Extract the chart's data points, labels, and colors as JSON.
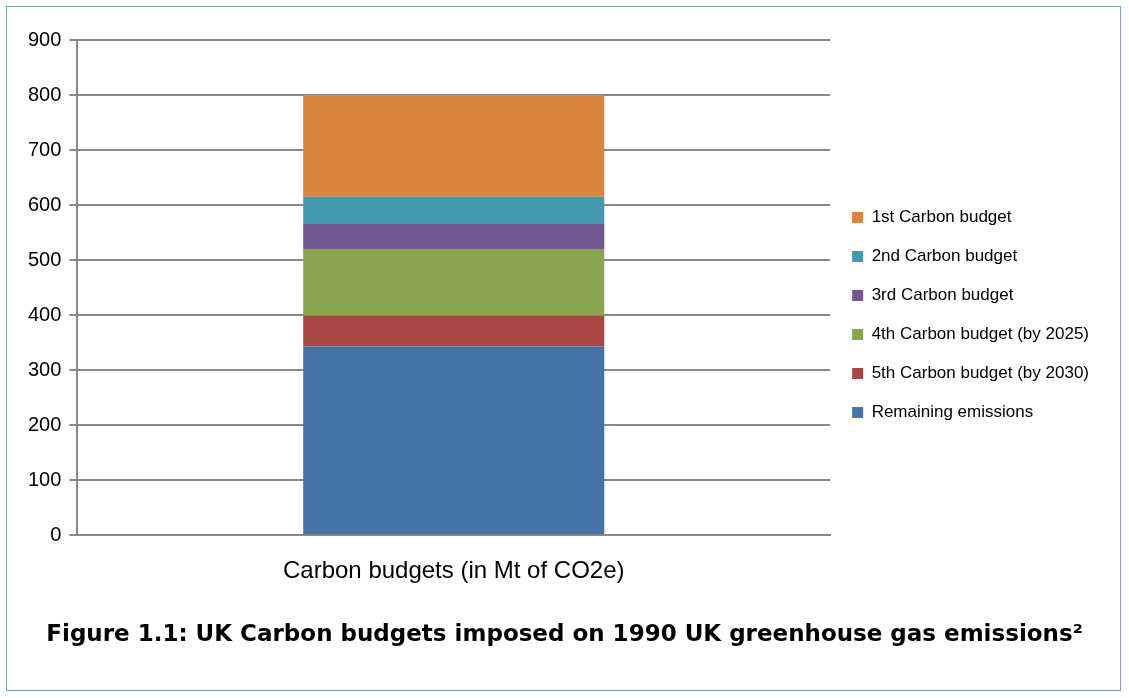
{
  "chart_data": {
    "type": "bar",
    "stacked": true,
    "categories": [
      "Carbon budgets (in Mt of CO2e)"
    ],
    "series": [
      {
        "name": "Remaining emissions",
        "color": "#4572a7",
        "values": [
          343
        ]
      },
      {
        "name": "5th Carbon budget (by 2030)",
        "color": "#aa4643",
        "values": [
          56
        ]
      },
      {
        "name": "4th Carbon budget (by 2025)",
        "color": "#89a54e",
        "values": [
          121
        ]
      },
      {
        "name": "3rd Carbon budget",
        "color": "#71588f",
        "values": [
          47
        ]
      },
      {
        "name": "2nd Carbon budget",
        "color": "#4198af",
        "values": [
          48
        ]
      },
      {
        "name": "1st Carbon budget",
        "color": "#db843d",
        "values": [
          185
        ]
      }
    ],
    "ylim": [
      0,
      900
    ],
    "yticks": [
      0,
      100,
      200,
      300,
      400,
      500,
      600,
      700,
      800,
      900
    ],
    "grid": "y",
    "legend": "right",
    "annotations": [
      "Figure 1.1: UK Carbon budgets imposed on 1990 UK greenhouse gas emissions²"
    ]
  }
}
